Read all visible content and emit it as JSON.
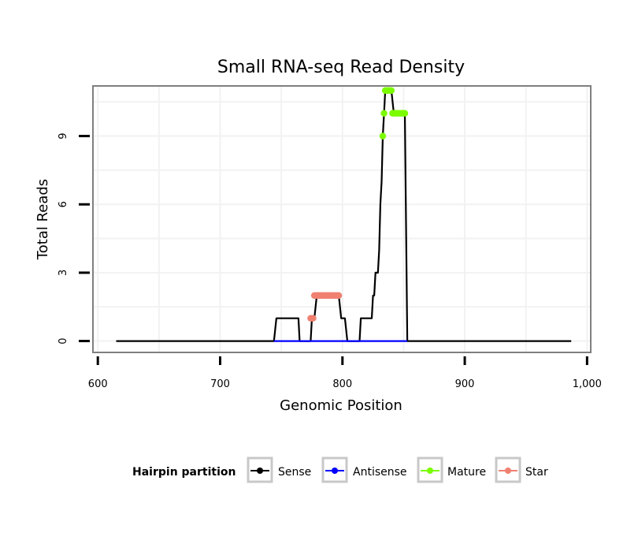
{
  "chart_data": {
    "type": "line",
    "title": "Small RNA-seq Read Density",
    "xlabel": "Genomic Position",
    "ylabel": "Total Reads",
    "xlim": [
      596,
      1003
    ],
    "ylim": [
      -0.5,
      11.2
    ],
    "x_ticks": [
      600,
      700,
      800,
      900,
      1000
    ],
    "x_tick_labels": [
      "600",
      "700",
      "800",
      "900",
      "1,000"
    ],
    "y_ticks": [
      0,
      3,
      6,
      9
    ],
    "y_tick_labels": [
      "0",
      "3",
      "6",
      "9"
    ],
    "legend": {
      "title": "Hairpin partition",
      "position": "bottom",
      "entries": [
        {
          "label": "Sense",
          "color": "#000000"
        },
        {
          "label": "Antisense",
          "color": "#0000ff"
        },
        {
          "label": "Mature",
          "color": "#7cfc00"
        },
        {
          "label": "Star",
          "color": "#f08070"
        }
      ]
    },
    "series": [
      {
        "name": "Sense",
        "color": "#000000",
        "marker": "none",
        "points": [
          [
            615,
            0
          ],
          [
            744,
            0
          ],
          [
            746,
            1
          ],
          [
            764,
            1
          ],
          [
            765,
            0
          ],
          [
            774,
            0
          ],
          [
            775,
            1
          ],
          [
            777,
            1
          ],
          [
            779,
            2
          ],
          [
            797,
            2
          ],
          [
            799,
            1
          ],
          [
            802,
            1
          ],
          [
            804,
            0
          ],
          [
            814,
            0
          ],
          [
            815,
            1
          ],
          [
            824,
            1
          ],
          [
            825,
            2
          ],
          [
            826,
            2
          ],
          [
            827,
            3
          ],
          [
            829,
            3
          ],
          [
            830,
            4
          ],
          [
            831,
            6
          ],
          [
            832,
            7
          ],
          [
            833,
            9
          ],
          [
            834,
            10
          ],
          [
            835,
            11
          ],
          [
            840,
            11
          ],
          [
            842,
            10
          ],
          [
            851,
            10
          ],
          [
            853,
            0
          ],
          [
            987,
            0
          ]
        ]
      },
      {
        "name": "Antisense",
        "color": "#0000ff",
        "marker": "none",
        "points": [
          [
            744,
            0
          ],
          [
            853,
            0
          ]
        ]
      },
      {
        "name": "Mature",
        "color": "#7cfc00",
        "marker": "dot",
        "points": [
          [
            833,
            9
          ],
          [
            834,
            10
          ],
          [
            835,
            11
          ],
          [
            836,
            11
          ],
          [
            837,
            11
          ],
          [
            838,
            11
          ],
          [
            839,
            11
          ],
          [
            840,
            11
          ],
          [
            841,
            10
          ],
          [
            842,
            10
          ],
          [
            843,
            10
          ],
          [
            844,
            10
          ],
          [
            845,
            10
          ],
          [
            846,
            10
          ],
          [
            847,
            10
          ],
          [
            848,
            10
          ],
          [
            849,
            10
          ],
          [
            850,
            10
          ],
          [
            851,
            10
          ]
        ]
      },
      {
        "name": "Star",
        "color": "#f08070",
        "marker": "dot",
        "points": [
          [
            774,
            1
          ],
          [
            775,
            1
          ],
          [
            776,
            1
          ],
          [
            777,
            2
          ],
          [
            778,
            2
          ],
          [
            779,
            2
          ],
          [
            780,
            2
          ],
          [
            781,
            2
          ],
          [
            782,
            2
          ],
          [
            783,
            2
          ],
          [
            784,
            2
          ],
          [
            785,
            2
          ],
          [
            786,
            2
          ],
          [
            787,
            2
          ],
          [
            788,
            2
          ],
          [
            789,
            2
          ],
          [
            790,
            2
          ],
          [
            791,
            2
          ],
          [
            792,
            2
          ],
          [
            793,
            2
          ],
          [
            794,
            2
          ],
          [
            795,
            2
          ],
          [
            796,
            2
          ],
          [
            797,
            2
          ]
        ]
      }
    ]
  }
}
